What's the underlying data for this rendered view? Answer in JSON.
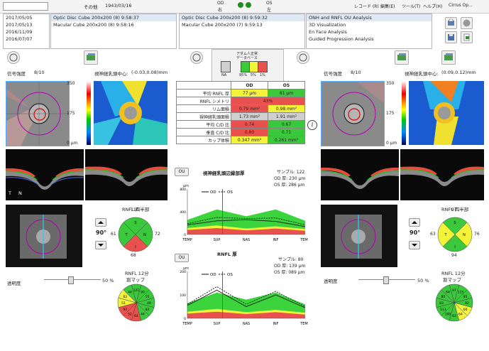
{
  "topbar": {
    "label_other": "その他",
    "dob": "1943/03/16",
    "od_label": "OD",
    "od_sub": "右",
    "os_label": "OS",
    "os_sub": "左",
    "menus": [
      "レコード (R)",
      "編集(E)",
      "ツール(T)",
      "ヘルプ(H)",
      "Cirrus Op..."
    ]
  },
  "dates": [
    "2017/05/05",
    "2017/05/13",
    "2016/11/09",
    "2016/07/07"
  ],
  "scans_od": [
    "Optic Disc Cube 200x200 (8) 9:58:37",
    "Macular Cube 200x200 (8) 9:58:16"
  ],
  "scans_os": [
    "Optic Disc Cube 200x200 (8) 9:59:32",
    "Macular Cube 200x200 (7) 9:59:13"
  ],
  "analyses": [
    "ONH and RNFL OU Analysis",
    "3D Visualization",
    "En Face Analysis",
    "Guided Progression Analysis"
  ],
  "legend": {
    "title_1": "アダム人正常",
    "title_2": "データベース",
    "labels": [
      "NA",
      "95%",
      "5%",
      "1%"
    ]
  },
  "left": {
    "signal": "信号強度",
    "signal_value": "8/10",
    "thickness_title": "視神経乳頭中心:",
    "thickness_value": "(-0.03,0.08)mm",
    "scale_max": "350",
    "scale_mid": "175",
    "scale_min": "0 μm",
    "quadrant_title": "RNFL 四半部",
    "quadrant_values": [
      "110",
      "72",
      "61",
      "68"
    ],
    "quadrant_letters": [
      "S",
      "N",
      "T",
      "I"
    ],
    "angle": "90°",
    "transparency": "透明度",
    "transparency_value": "50 %",
    "clock_title": "RNFL 12分",
    "clock_sub": "割マップ",
    "clock_values": [
      "121",
      "99",
      "55",
      "49",
      "82",
      "44",
      "64",
      "52",
      "92",
      "51",
      "62",
      "44"
    ],
    "marks_T": "T",
    "marks_N": "N"
  },
  "right": {
    "signal": "信号強度",
    "signal_value": "8/10",
    "thickness_title": "視神経乳頭中心:",
    "thickness_value": "(0.09,0.12)mm",
    "scale_max": "350",
    "scale_mid": "175",
    "scale_min": "0 μm",
    "quadrant_title": "RNFL 四半部",
    "quadrant_values": [
      "97",
      "76",
      "63",
      "94"
    ],
    "quadrant_letters": [
      "S",
      "N",
      "T",
      "I"
    ],
    "angle": "90°",
    "transparency": "透明度",
    "transparency_value": "50 %",
    "clock_title": "RNFL 12分",
    "clock_sub": "割マップ",
    "clock_values": [
      "97",
      "115",
      "85",
      "92",
      "60",
      "64",
      "62",
      "100",
      "111",
      "83",
      "80",
      "64"
    ]
  },
  "table": {
    "headers": [
      "",
      "OD",
      "OS"
    ],
    "rows": [
      {
        "label": "平均 RNFL 厚",
        "od": "77 μm",
        "os": "81 μm",
        "od_c": "y",
        "os_c": "g"
      },
      {
        "label": "RNFL シメトリ",
        "od": "43%",
        "os": "",
        "od_c": "r",
        "os_c": "r",
        "span": true
      },
      {
        "label": "リム面積",
        "od": "0.79 mm²",
        "os": "0.98 mm²",
        "od_c": "r",
        "os_c": "y"
      },
      {
        "label": "視神経乳頭面積",
        "od": "1.73 mm²",
        "os": "1.91 mm²",
        "od_c": "gy",
        "os_c": "gy"
      },
      {
        "label": "平均 C/D 比",
        "od": "0.74",
        "os": "0.67",
        "od_c": "r",
        "os_c": "g"
      },
      {
        "label": "垂直 C/D 比",
        "od": "0.80",
        "os": "0.71",
        "od_c": "r",
        "os_c": "g"
      },
      {
        "label": "カップ体積",
        "od": "0.347 mm³",
        "os": "0.261 mm³",
        "od_c": "y",
        "os_c": "g"
      }
    ]
  },
  "chart_top": {
    "ou": "OU",
    "title": "視神経乳頭辺縁部厚",
    "sample": "サンプル: 122",
    "od_thick": "OD 厚: 230 μm",
    "os_thick": "OS 厚: 286 μm",
    "unit": "μm",
    "yticks": [
      "800",
      "400",
      "0"
    ],
    "legend_od": "OD",
    "legend_os": "OS",
    "xticks": [
      "TEMP",
      "SUP",
      "NAS",
      "INF",
      "TEMP"
    ]
  },
  "chart_bottom": {
    "ou": "OU",
    "title": "RNFL 厚",
    "sample": "サンプル: 80",
    "od_thick": "OD 厚: 139 μm",
    "os_thick": "OS 厚: 089 μm",
    "unit": "μm",
    "yticks": [
      "200",
      "100",
      "0"
    ],
    "legend_od": "OD",
    "legend_os": "OS",
    "xticks": [
      "TEMP",
      "SUP",
      "NAS",
      "INF",
      "TEMP"
    ]
  },
  "chart_data": [
    {
      "type": "line",
      "title": "視神経乳頭辺縁部厚",
      "ylim": [
        0,
        800
      ],
      "x": [
        "TEMP",
        "SUP",
        "NAS",
        "INF",
        "TEMP"
      ],
      "series": [
        {
          "name": "OD",
          "values": [
            170,
            240,
            260,
            230,
            140
          ]
        },
        {
          "name": "OS",
          "values": [
            190,
            300,
            280,
            290,
            170
          ]
        }
      ]
    },
    {
      "type": "line",
      "title": "RNFL 厚",
      "ylim": [
        0,
        200
      ],
      "x": [
        "TEMP",
        "SUP",
        "NAS",
        "INF",
        "TEMP"
      ],
      "series": [
        {
          "name": "OD",
          "values": [
            55,
            120,
            50,
            100,
            45
          ]
        },
        {
          "name": "OS",
          "values": [
            60,
            135,
            60,
            115,
            50
          ]
        }
      ]
    }
  ],
  "colors": {
    "green": "#3cc83c",
    "yellow": "#f3f33a",
    "red": "#e8514d",
    "gray": "#cfcfcf",
    "od_line": "#111111",
    "os_line": "#111111"
  }
}
